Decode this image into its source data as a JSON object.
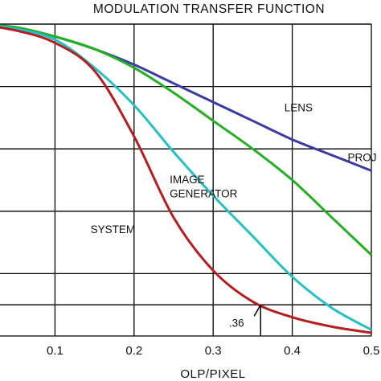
{
  "chart_data": {
    "type": "line",
    "title": "MODULATION TRANSFER FUNCTION",
    "xlabel": "OLP/PIXEL",
    "ylabel": "",
    "xlim": [
      0,
      0.5
    ],
    "ylim": [
      0,
      1
    ],
    "grid": true,
    "x_ticks": [
      0.1,
      0.2,
      0.3,
      0.4,
      0.5
    ],
    "x_tick_labels": [
      "0.1",
      "0.2",
      "0.3",
      "0.4",
      "0.5"
    ],
    "series": [
      {
        "name": "LENS",
        "color": "#3a3aa8",
        "x": [
          0,
          0.05,
          0.1,
          0.15,
          0.2,
          0.25,
          0.3,
          0.35,
          0.4,
          0.45,
          0.5
        ],
        "y": [
          1.0,
          0.99,
          0.96,
          0.92,
          0.87,
          0.81,
          0.75,
          0.69,
          0.63,
          0.58,
          0.53
        ]
      },
      {
        "name": "PROJ",
        "color": "#22b022",
        "x": [
          0,
          0.05,
          0.1,
          0.15,
          0.2,
          0.25,
          0.3,
          0.35,
          0.4,
          0.45,
          0.5
        ],
        "y": [
          1.0,
          0.99,
          0.96,
          0.92,
          0.86,
          0.78,
          0.69,
          0.6,
          0.5,
          0.38,
          0.26
        ]
      },
      {
        "name": "IMAGE GENERATOR",
        "color": "#22c0c8",
        "x": [
          0,
          0.05,
          0.1,
          0.15,
          0.2,
          0.25,
          0.3,
          0.35,
          0.4,
          0.45,
          0.5
        ],
        "y": [
          1.0,
          0.985,
          0.95,
          0.86,
          0.74,
          0.59,
          0.45,
          0.32,
          0.19,
          0.09,
          0.02
        ]
      },
      {
        "name": "SYSTEM",
        "color": "#b81c1c",
        "x": [
          0,
          0.05,
          0.1,
          0.15,
          0.2,
          0.25,
          0.3,
          0.35,
          0.4,
          0.45,
          0.5
        ],
        "y": [
          1.0,
          0.98,
          0.94,
          0.85,
          0.64,
          0.38,
          0.21,
          0.11,
          0.06,
          0.03,
          0.01
        ]
      }
    ],
    "annotations": [
      {
        "text": "LENS",
        "x": 0.39,
        "y": 0.72,
        "series": "LENS"
      },
      {
        "text": "PROJ",
        "x": 0.47,
        "y": 0.56,
        "series": "PROJ"
      },
      {
        "text": "IMAGE",
        "x": 0.245,
        "y": 0.49,
        "series": "IMAGE GENERATOR"
      },
      {
        "text": "GENERATOR",
        "x": 0.245,
        "y": 0.445,
        "series": "IMAGE GENERATOR"
      },
      {
        "text": "SYSTEM",
        "x": 0.145,
        "y": 0.33,
        "series": "SYSTEM"
      },
      {
        "text": ".36",
        "x": 0.32,
        "y": 0.03,
        "marker_x": 0.36
      }
    ]
  }
}
